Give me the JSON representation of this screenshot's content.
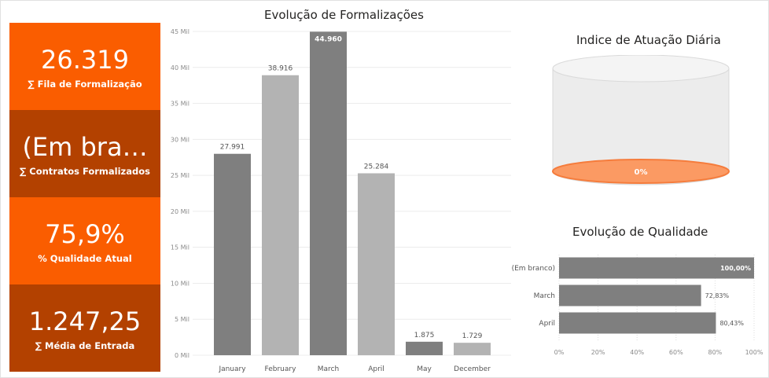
{
  "theme": {
    "orange": "#fa5d00",
    "dark_orange": "#b34100",
    "bar_dark": "#7f7f7f",
    "bar_light": "#b3b3b3",
    "cyl_fill": "#fb9a63"
  },
  "cards": [
    {
      "value": "26.319",
      "label": "∑ Fila de Formalização",
      "color": "#fa5d00"
    },
    {
      "value": "(Em bra…",
      "label": "∑ Contratos Formalizados",
      "color": "#b34100"
    },
    {
      "value": "75,9%",
      "label": "% Qualidade Atual",
      "color": "#fa5d00"
    },
    {
      "value": "1.247,25",
      "label": "∑ Média de Entrada",
      "color": "#b34100"
    }
  ],
  "chart_data": [
    {
      "type": "bar",
      "title": "Evolução de Formalizações",
      "categories": [
        "January",
        "February",
        "March",
        "April",
        "May",
        "December"
      ],
      "values": [
        27991,
        38916,
        44960,
        25284,
        1875,
        1729
      ],
      "data_labels": [
        "27.991",
        "38.916",
        "44.960",
        "25.284",
        "1.875",
        "1.729"
      ],
      "bar_colors": [
        "#7f7f7f",
        "#b3b3b3",
        "#7f7f7f",
        "#b3b3b3",
        "#7f7f7f",
        "#b3b3b3"
      ],
      "ylim": [
        0,
        45000
      ],
      "yticks": [
        0,
        5000,
        10000,
        15000,
        20000,
        25000,
        30000,
        35000,
        40000,
        45000
      ],
      "ytick_labels": [
        "0 Mil",
        "5 Mil",
        "10 Mil",
        "15 Mil",
        "20 Mil",
        "25 Mil",
        "30 Mil",
        "35 Mil",
        "40 Mil",
        "45 Mil"
      ],
      "grid": true
    },
    {
      "type": "bar",
      "orientation": "horizontal",
      "title": "Evolução de Qualidade",
      "categories": [
        "(Em branco)",
        "March",
        "April"
      ],
      "values": [
        100,
        72.83,
        80.43
      ],
      "data_labels": [
        "100,00%",
        "72,83%",
        "80,43%"
      ],
      "xlim": [
        0,
        100
      ],
      "xticks": [
        0,
        20,
        40,
        60,
        80,
        100
      ],
      "xtick_labels": [
        "0%",
        "20%",
        "40%",
        "60%",
        "80%",
        "100%"
      ],
      "grid": true
    }
  ],
  "gauge": {
    "title": "Indice de Atuação Diária",
    "value": 0,
    "value_label": "0%"
  }
}
